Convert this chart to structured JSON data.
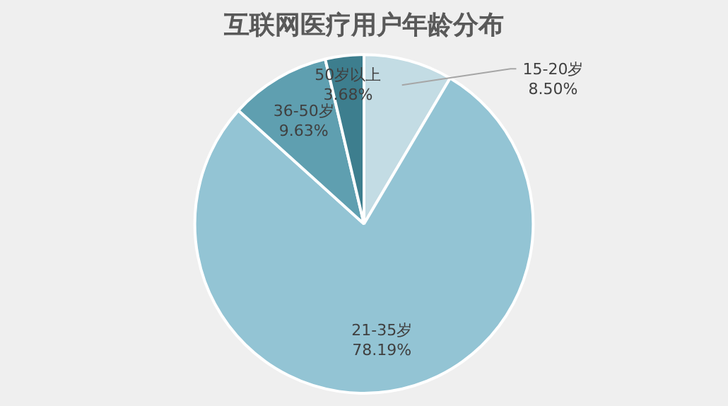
{
  "chart_data": {
    "type": "pie",
    "title": "互联网医疗用户年龄分布",
    "categories": [
      "15-20岁",
      "21-35岁",
      "36-50岁",
      "50岁以上"
    ],
    "values": [
      8.5,
      78.19,
      9.63,
      3.68
    ],
    "colors": [
      "#c3dce4",
      "#93c4d4",
      "#5f9fb0",
      "#3d7e8e"
    ],
    "value_labels": [
      "8.50%",
      "78.19%",
      "9.63%",
      "3.68%"
    ],
    "legend": false
  }
}
